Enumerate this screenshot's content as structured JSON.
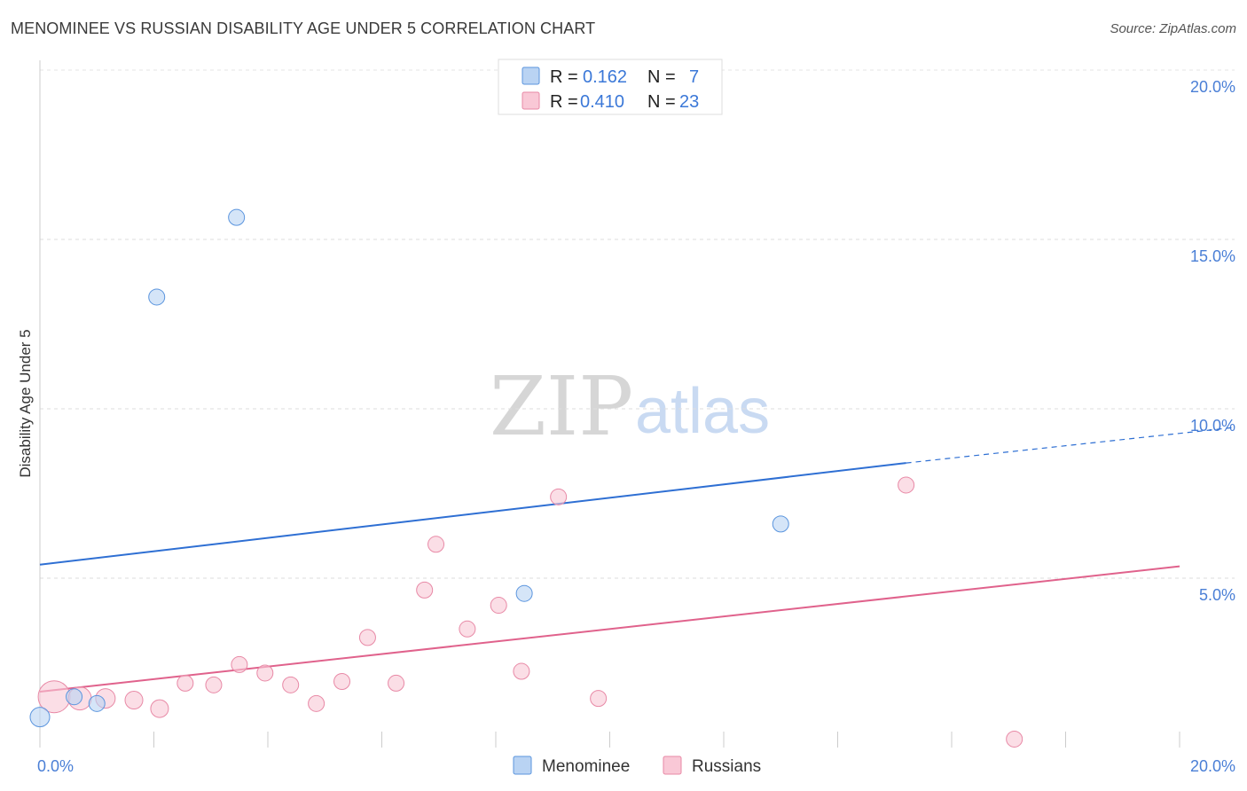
{
  "header": {
    "title": "MENOMINEE VS RUSSIAN DISABILITY AGE UNDER 5 CORRELATION CHART",
    "source": "Source: ZipAtlas.com"
  },
  "watermark": {
    "zip": "ZIP",
    "atlas": "atlas"
  },
  "legend": {
    "rows": [
      {
        "r_label": "R =",
        "r_value": "0.162",
        "n_label": "N =",
        "n_value": "7",
        "color": "#a9c8f0"
      },
      {
        "r_label": "R =",
        "r_value": "0.410",
        "n_label": "N =",
        "n_value": "23",
        "color": "#f7b9cb"
      }
    ]
  },
  "chart_data": {
    "type": "scatter",
    "title": "MENOMINEE VS RUSSIAN DISABILITY AGE UNDER 5 CORRELATION CHART",
    "xlabel": "",
    "ylabel": "Disability Age Under 5",
    "xlim": [
      0,
      20
    ],
    "ylim": [
      0,
      20
    ],
    "x_tick_labels": [
      "0.0%",
      "20.0%"
    ],
    "y_ticks": [
      5,
      10,
      15,
      20
    ],
    "y_tick_labels": [
      "5.0%",
      "10.0%",
      "15.0%",
      "20.0%"
    ],
    "grid": true,
    "legend_position": "top-center",
    "series": [
      {
        "name": "Menominee",
        "color": "#5b95de",
        "fill": "#b9d3f3",
        "points": [
          {
            "x": 0.0,
            "y": 0.9,
            "s": 11
          },
          {
            "x": 0.6,
            "y": 1.5,
            "s": 9
          },
          {
            "x": 1.0,
            "y": 1.3,
            "s": 9
          },
          {
            "x": 2.05,
            "y": 13.3,
            "s": 9
          },
          {
            "x": 3.45,
            "y": 15.65,
            "s": 9
          },
          {
            "x": 8.5,
            "y": 4.55,
            "s": 9
          },
          {
            "x": 13.0,
            "y": 6.6,
            "s": 9
          }
        ],
        "trend": {
          "x0": 0,
          "y0": 5.4,
          "x1": 15.2,
          "y1": 8.4,
          "dash_to_x": 20,
          "dash_to_y": 9.45,
          "color": "#2e6fd3"
        }
      },
      {
        "name": "Russians",
        "color": "#e889a6",
        "fill": "#f9c8d6",
        "points": [
          {
            "x": 0.25,
            "y": 1.5,
            "s": 18
          },
          {
            "x": 0.7,
            "y": 1.45,
            "s": 13
          },
          {
            "x": 1.15,
            "y": 1.45,
            "s": 11
          },
          {
            "x": 1.65,
            "y": 1.4,
            "s": 10
          },
          {
            "x": 2.1,
            "y": 1.15,
            "s": 10
          },
          {
            "x": 2.55,
            "y": 1.9,
            "s": 9
          },
          {
            "x": 3.05,
            "y": 1.85,
            "s": 9
          },
          {
            "x": 3.5,
            "y": 2.45,
            "s": 9
          },
          {
            "x": 3.95,
            "y": 2.2,
            "s": 9
          },
          {
            "x": 4.4,
            "y": 1.85,
            "s": 9
          },
          {
            "x": 4.85,
            "y": 1.3,
            "s": 9
          },
          {
            "x": 5.3,
            "y": 1.95,
            "s": 9
          },
          {
            "x": 5.75,
            "y": 3.25,
            "s": 9
          },
          {
            "x": 6.25,
            "y": 1.9,
            "s": 9
          },
          {
            "x": 6.75,
            "y": 4.65,
            "s": 9
          },
          {
            "x": 6.95,
            "y": 6.0,
            "s": 9
          },
          {
            "x": 7.5,
            "y": 3.5,
            "s": 9
          },
          {
            "x": 8.05,
            "y": 4.2,
            "s": 9
          },
          {
            "x": 8.45,
            "y": 2.25,
            "s": 9
          },
          {
            "x": 9.1,
            "y": 7.4,
            "s": 9
          },
          {
            "x": 9.8,
            "y": 1.45,
            "s": 9
          },
          {
            "x": 15.2,
            "y": 7.75,
            "s": 9
          },
          {
            "x": 17.1,
            "y": 0.25,
            "s": 9
          }
        ],
        "trend": {
          "x0": 0,
          "y0": 1.65,
          "x1": 20,
          "y1": 5.35,
          "color": "#e0628c"
        }
      }
    ]
  }
}
